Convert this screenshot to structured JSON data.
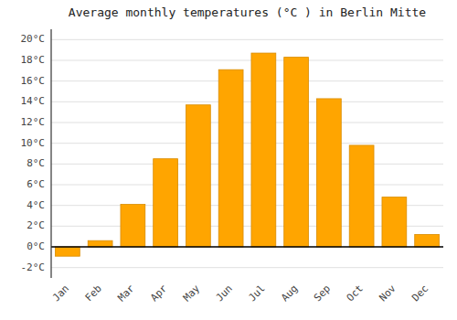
{
  "chart_data": {
    "type": "bar",
    "title": "Average monthly temperatures (°C ) in Berlin Mitte",
    "categories": [
      "Jan",
      "Feb",
      "Mar",
      "Apr",
      "May",
      "Jun",
      "Jul",
      "Aug",
      "Sep",
      "Oct",
      "Nov",
      "Dec"
    ],
    "values": [
      -0.9,
      0.6,
      4.1,
      8.5,
      13.7,
      17.1,
      18.7,
      18.3,
      14.3,
      9.8,
      4.8,
      1.2
    ],
    "color": "#FFA500",
    "ylim": [
      -3,
      21
    ],
    "yticks": [
      {
        "value": -2,
        "label": "-2°C"
      },
      {
        "value": 0,
        "label": "0°C"
      },
      {
        "value": 2,
        "label": "2°C"
      },
      {
        "value": 4,
        "label": "4°C"
      },
      {
        "value": 6,
        "label": "6°C"
      },
      {
        "value": 8,
        "label": "8°C"
      },
      {
        "value": 10,
        "label": "10°C"
      },
      {
        "value": 12,
        "label": "12°C"
      },
      {
        "value": 14,
        "label": "14°C"
      },
      {
        "value": 16,
        "label": "16°C"
      },
      {
        "value": 18,
        "label": "18°C"
      },
      {
        "value": 20,
        "label": "20°C"
      }
    ],
    "grid": true
  }
}
